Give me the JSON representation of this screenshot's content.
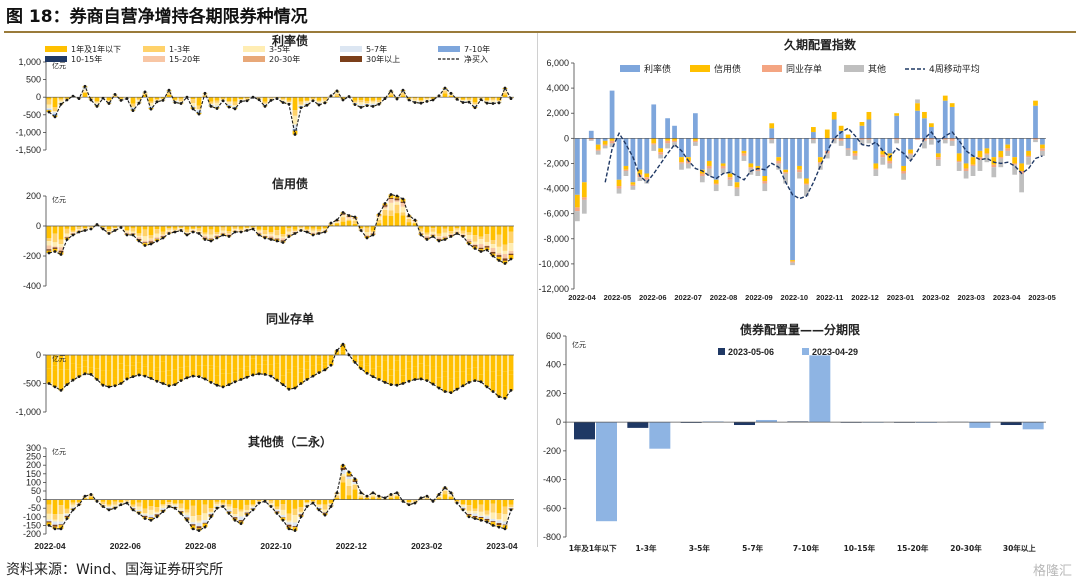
{
  "figure_title": "图 18：券商自营净增持各期限券种情况",
  "source": "资料来源：Wind、国海证券研究所",
  "watermark": "格隆汇",
  "colors": {
    "rate": "#7ea6dc",
    "credit": "#ffc000",
    "cd": "#f4a582",
    "other": "#bfbfbf",
    "le1": "#ffc000",
    "y1_3": "#ffd26a",
    "y3_5": "#ffedb3",
    "y5_7": "#dce6f2",
    "y7_10": "#7ea6dc",
    "y10_15": "#1f3864",
    "y15_20": "#f8c6a4",
    "y20_30": "#e8a878",
    "y30p": "#7b3f1a",
    "net": "#1a1a1a",
    "navy": "#1f3864",
    "light_blue": "#8eb4e3"
  },
  "chart_data": [
    {
      "type": "bar",
      "title": "利率债",
      "unit": "亿元",
      "ylim": [
        -1500,
        1000
      ],
      "yticks": [
        "1,000",
        "500",
        "0",
        "-500",
        "-1,000",
        "-1,500"
      ],
      "legend": [
        "1年及1年以下",
        "1-3年",
        "3-5年",
        "5-7年",
        "7-10年",
        "10-15年",
        "15-20年",
        "20-30年",
        "30年以上",
        "净买入"
      ],
      "net": [
        -420,
        -560,
        -200,
        -80,
        30,
        -40,
        310,
        -80,
        -260,
        -30,
        -180,
        80,
        -90,
        -40,
        -380,
        -170,
        150,
        -340,
        -130,
        -90,
        200,
        -150,
        -180,
        0,
        -330,
        -480,
        110,
        -260,
        -320,
        -100,
        -280,
        -330,
        -120,
        -100,
        0,
        -70,
        -260,
        -90,
        -40,
        -150,
        -200,
        -1060,
        -300,
        -230,
        -100,
        -220,
        -160,
        40,
        180,
        -80,
        20,
        -210,
        -290,
        -240,
        -260,
        -200,
        -40,
        180,
        -50,
        200,
        -80,
        -150,
        -170,
        -120,
        -80,
        40,
        260,
        110,
        -60,
        -150,
        -140,
        -300,
        -70,
        -170,
        -180,
        -160,
        260,
        -40
      ]
    },
    {
      "type": "bar",
      "title": "信用债",
      "unit": "亿元",
      "ylim": [
        -400,
        200
      ],
      "yticks": [
        "200",
        "0",
        "-200",
        "-400"
      ],
      "net": [
        -180,
        -170,
        -190,
        -90,
        -60,
        -40,
        -30,
        -20,
        10,
        -20,
        -50,
        -30,
        -10,
        -60,
        -60,
        -100,
        -130,
        -120,
        -100,
        -80,
        -50,
        -40,
        -30,
        -60,
        -40,
        -50,
        -90,
        -100,
        -80,
        -60,
        -70,
        -40,
        -40,
        -30,
        -20,
        -60,
        -80,
        -90,
        -100,
        -110,
        -70,
        -50,
        -30,
        -40,
        -60,
        -50,
        -40,
        20,
        40,
        90,
        70,
        60,
        -30,
        -80,
        -60,
        80,
        150,
        210,
        200,
        180,
        70,
        40,
        -60,
        -90,
        -70,
        -100,
        -90,
        -70,
        -50,
        -70,
        -120,
        -150,
        -170,
        -160,
        -200,
        -230,
        -250,
        -220
      ]
    },
    {
      "type": "bar",
      "title": "同业存单",
      "unit": "亿元",
      "ylim": [
        -1000,
        0
      ],
      "yticks": [
        "0",
        "-500",
        "-1,000"
      ],
      "net": [
        -500,
        -560,
        -620,
        -520,
        -440,
        -380,
        -330,
        -340,
        -430,
        -530,
        -560,
        -540,
        -500,
        -420,
        -380,
        -350,
        -370,
        -410,
        -460,
        -500,
        -540,
        -520,
        -450,
        -400,
        -370,
        -380,
        -420,
        -480,
        -530,
        -560,
        -520,
        -470,
        -430,
        -390,
        -350,
        -330,
        -340,
        -370,
        -440,
        -520,
        -600,
        -580,
        -500,
        -430,
        -370,
        -310,
        -260,
        -180,
        80,
        190,
        0,
        -130,
        -240,
        -320,
        -380,
        -430,
        -480,
        -520,
        -530,
        -500,
        -460,
        -430,
        -420,
        -450,
        -510,
        -580,
        -640,
        -660,
        -600,
        -540,
        -480,
        -450,
        -470,
        -560,
        -640,
        -730,
        -760,
        -620
      ]
    },
    {
      "type": "bar",
      "title": "其他债（二永）",
      "unit": "亿元",
      "ylim": [
        -200,
        300
      ],
      "yticks": [
        "300",
        "250",
        "200",
        "150",
        "100",
        "50",
        "0",
        "-50",
        "-100",
        "-150",
        "-200"
      ],
      "xticks": [
        "2022-04",
        "2022-06",
        "2022-08",
        "2022-10",
        "2022-12",
        "2023-02",
        "2023-04"
      ],
      "net": [
        -150,
        -170,
        -170,
        -110,
        -60,
        -30,
        20,
        30,
        -10,
        -40,
        -60,
        -50,
        -30,
        -20,
        -60,
        -80,
        -110,
        -120,
        -100,
        -70,
        -40,
        -50,
        -80,
        -120,
        -170,
        -180,
        -160,
        -100,
        -50,
        -40,
        -80,
        -120,
        -140,
        -90,
        -60,
        -20,
        -10,
        -40,
        -80,
        -120,
        -170,
        -180,
        -100,
        -40,
        -20,
        -60,
        -90,
        -40,
        40,
        200,
        160,
        120,
        40,
        20,
        40,
        20,
        10,
        30,
        40,
        -10,
        -30,
        -20,
        10,
        20,
        -10,
        30,
        70,
        40,
        -20,
        -60,
        -100,
        -110,
        -120,
        -130,
        -150,
        -160,
        -170,
        -60
      ]
    },
    {
      "type": "bar",
      "title": "久期配置指数",
      "ylim": [
        -12000,
        6000
      ],
      "yticks": [
        "6,000",
        "4,000",
        "2,000",
        "0",
        "-2,000",
        "-4,000",
        "-6,000",
        "-8,000",
        "-10,000",
        "-12,000"
      ],
      "xticks": [
        "2022-04",
        "2022-05",
        "2022-06",
        "2022-07",
        "2022-08",
        "2022-09",
        "2022-10",
        "2022-11",
        "2022-12",
        "2023-01",
        "2023-02",
        "2023-03",
        "2023-04",
        "2023-05"
      ],
      "legend": [
        "利率债",
        "信用债",
        "同业存单",
        "其他",
        "4周移动平均"
      ],
      "series": [
        {
          "name": "利率债",
          "values": [
            -4500,
            -3500,
            600,
            -500,
            -200,
            3800,
            -3300,
            -2200,
            -3500,
            -2500,
            -2800,
            2700,
            -800,
            1600,
            1000,
            -1500,
            -1500,
            2000,
            -2500,
            -1800,
            -3300,
            -2000,
            -2800,
            -3500,
            -1000,
            -2000,
            -2200,
            -3000,
            800,
            -1500,
            -2500,
            -9700,
            -2200,
            -3200,
            500,
            -1500,
            -1000,
            1500,
            600,
            -800,
            -1000,
            1000,
            1500,
            -2000,
            -1000,
            -1200,
            1800,
            -2200,
            -900,
            2200,
            1600,
            900,
            -1200,
            3000,
            2500,
            -1200,
            -2000,
            -1500,
            -1000,
            -800,
            -1500,
            -1000,
            -500,
            -1500,
            -2000,
            -1000,
            2600,
            -500
          ]
        },
        {
          "name": "信用债",
          "values": [
            -1000,
            -1200,
            0,
            -400,
            -300,
            -200,
            -500,
            -300,
            -200,
            -400,
            -300,
            -400,
            -300,
            -200,
            -200,
            -400,
            -300,
            -200,
            -300,
            -400,
            -300,
            -200,
            -300,
            -400,
            -200,
            -300,
            -200,
            -400,
            400,
            -300,
            -200,
            -100,
            -300,
            -400,
            400,
            -400,
            700,
            600,
            400,
            300,
            -200,
            300,
            600,
            -400,
            -300,
            -600,
            200,
            -400,
            -300,
            600,
            500,
            300,
            -300,
            400,
            300,
            -600,
            -400,
            -600,
            -500,
            -400,
            -600,
            -500,
            -300,
            -500,
            -600,
            -400,
            400,
            -300
          ]
        },
        {
          "name": "同业存单",
          "values": [
            -300,
            -200,
            -100,
            -100,
            -100,
            -200,
            -200,
            -100,
            -100,
            -200,
            -200,
            -100,
            -200,
            -200,
            -100,
            -100,
            -200,
            -100,
            -200,
            -200,
            -100,
            -200,
            -200,
            -100,
            -200,
            -100,
            -200,
            -200,
            -100,
            -200,
            -100,
            -100,
            -200,
            -100,
            -100,
            -100,
            -200,
            -100,
            -200,
            -100,
            -200,
            -100,
            -100,
            -100,
            -200,
            -200,
            -100,
            -200,
            -100,
            -100,
            -200,
            -100,
            -200,
            -100,
            -200,
            -100,
            -200,
            -100,
            -200,
            -100,
            -200,
            -100,
            -200,
            -100,
            -200,
            -100,
            -100,
            -200
          ]
        },
        {
          "name": "其他",
          "values": [
            -800,
            -1100,
            -100,
            -300,
            -200,
            -300,
            -400,
            -400,
            -300,
            -300,
            -300,
            -500,
            -300,
            -400,
            -400,
            -500,
            -400,
            -300,
            -500,
            -600,
            -500,
            -400,
            -500,
            -600,
            -400,
            -500,
            -400,
            -600,
            -300,
            -500,
            -800,
            -200,
            -500,
            -900,
            -300,
            -500,
            -400,
            -300,
            -400,
            -500,
            -300,
            -400,
            -300,
            -500,
            -600,
            -400,
            -300,
            -500,
            -400,
            300,
            -600,
            -400,
            -500,
            -300,
            -400,
            -700,
            -600,
            -800,
            -900,
            -600,
            -800,
            -700,
            -400,
            -800,
            -1500,
            -600,
            -200,
            -400
          ]
        }
      ],
      "ma": [
        null,
        null,
        null,
        null,
        -3500,
        -800,
        400,
        -500,
        -1500,
        -3000,
        -3500,
        -2800,
        -2000,
        -1200,
        -500,
        -1000,
        -1800,
        -2400,
        -2600,
        -3000,
        -3200,
        -2800,
        -2700,
        -3000,
        -3300,
        -2600,
        -2400,
        -2500,
        -2000,
        -2300,
        -3500,
        -4500,
        -4800,
        -4600,
        -3500,
        -2200,
        -1000,
        0,
        500,
        800,
        200,
        -500,
        -600,
        -300,
        -1000,
        -1500,
        -800,
        -1200,
        -1800,
        -1000,
        0,
        500,
        -300,
        200,
        500,
        -200,
        -1000,
        -1400,
        -1700,
        -1600,
        -1900,
        -2000,
        -1900,
        -2200,
        -2800,
        -2400,
        -1600,
        -1400
      ]
    },
    {
      "type": "bar",
      "title": "债券配置量——分期限",
      "unit": "亿元",
      "ylim": [
        -800,
        600
      ],
      "yticks": [
        "600",
        "400",
        "200",
        "0",
        "-200",
        "-400",
        "-600",
        "-800"
      ],
      "categories": [
        "1年及1年以下",
        "1-3年",
        "3-5年",
        "5-7年",
        "7-10年",
        "10-15年",
        "15-20年",
        "20-30年",
        "30年以上"
      ],
      "series": [
        {
          "name": "2023-05-06",
          "values": [
            -120,
            -40,
            -5,
            -20,
            5,
            -3,
            -2,
            2,
            -20
          ]
        },
        {
          "name": "2023-04-29",
          "values": [
            -690,
            -185,
            5,
            15,
            465,
            -3,
            -5,
            -40,
            -50
          ]
        }
      ]
    }
  ]
}
